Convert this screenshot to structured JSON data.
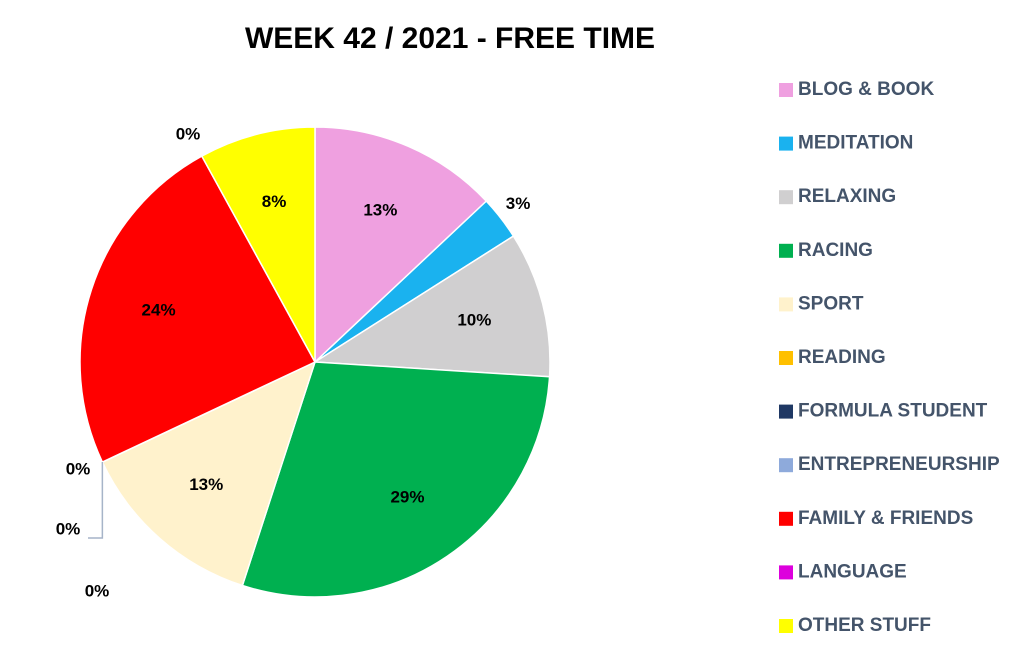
{
  "chart_data": {
    "type": "pie",
    "title": "WEEK 42 / 2021 - FREE TIME",
    "categories": [
      "BLOG & BOOK",
      "MEDITATION",
      "RELAXING",
      "RACING",
      "SPORT",
      "READING",
      "FORMULA STUDENT",
      "ENTREPRENEURSHIP",
      "FAMILY & FRIENDS",
      "LANGUAGE",
      "OTHER STUFF"
    ],
    "values": [
      13,
      3,
      10,
      29,
      13,
      0,
      0,
      0,
      24,
      0,
      8
    ],
    "value_labels": [
      "13%",
      "3%",
      "10%",
      "29%",
      "13%",
      "0%",
      "0%",
      "0%",
      "24%",
      "0%",
      "8%"
    ],
    "colors": [
      "#efa0e0",
      "#1ab2ef",
      "#d0cfd0",
      "#00b050",
      "#fff2cc",
      "#ffc000",
      "#1f3864",
      "#8eaadb",
      "#ff0000",
      "#dd00dd",
      "#ffff00"
    ],
    "legend": "right"
  }
}
